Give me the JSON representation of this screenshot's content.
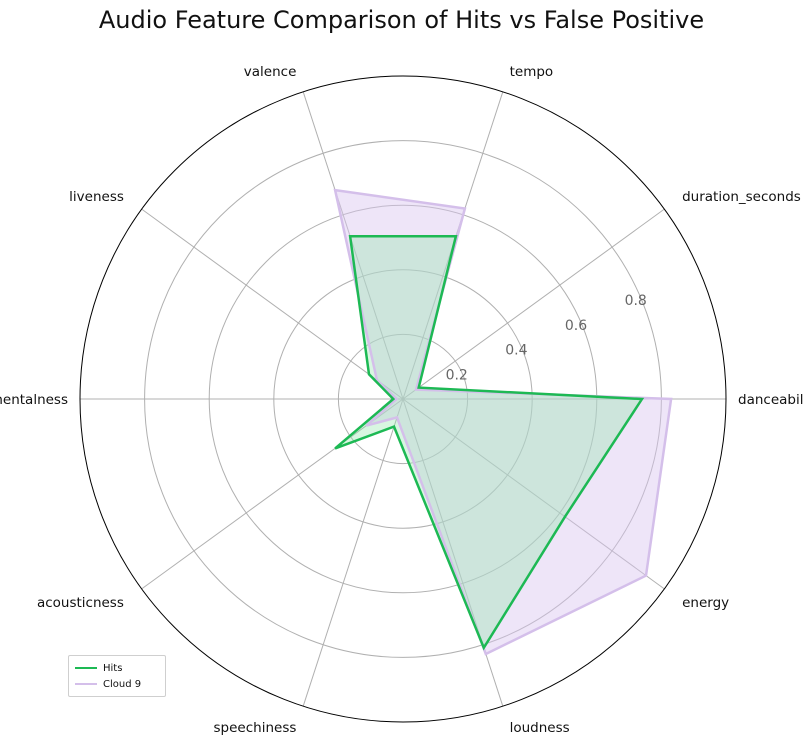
{
  "chart_data": {
    "type": "radar",
    "title": "Audio Feature Comparison of Hits vs False Positive",
    "axes": [
      "danceability",
      "energy",
      "loudness",
      "speechiness",
      "acousticness",
      "instrumentalness",
      "liveness",
      "valence",
      "tempo",
      "duration_seconds"
    ],
    "rticks": [
      "0.2",
      "0.4",
      "0.6",
      "0.8"
    ],
    "rtick_values": [
      0.2,
      0.4,
      0.6,
      0.8
    ],
    "rmax": 1.0,
    "grid": true,
    "legend_position": "lower-left",
    "series": [
      {
        "name": "Hits",
        "color": "#1db954",
        "fill": "#8fe6a8",
        "values": [
          0.74,
          0.62,
          0.81,
          0.09,
          0.26,
          0.03,
          0.13,
          0.53,
          0.53,
          0.06
        ]
      },
      {
        "name": "Cloud 9",
        "color": "#d4bfea",
        "fill": "#d9c6ef",
        "values": [
          0.83,
          0.93,
          0.83,
          0.06,
          0.14,
          0.02,
          0.1,
          0.68,
          0.62,
          0.05
        ]
      }
    ]
  }
}
